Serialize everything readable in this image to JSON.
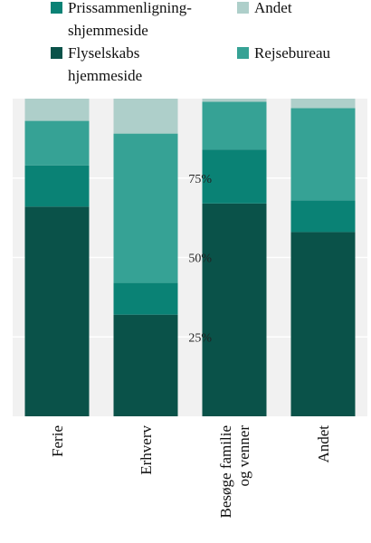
{
  "chart_data": {
    "type": "bar",
    "stacked": true,
    "normalized": true,
    "orientation": "vertical",
    "categories": [
      "Ferie",
      "Erhverv",
      "Besøge familie og venner",
      "Andet"
    ],
    "category_lines": [
      [
        "Ferie"
      ],
      [
        "Erhverv"
      ],
      [
        "Besøge familie",
        "og venner"
      ],
      [
        "Andet"
      ]
    ],
    "series": [
      {
        "name": "Flyselskabs hjemmeside",
        "legend_lines": [
          "Flyselskabs",
          "hjemmeside"
        ],
        "color": "#0a5249",
        "values": [
          66,
          32,
          67,
          58
        ]
      },
      {
        "name": "Prissammenligning-shjemmeside",
        "legend_lines": [
          "Prissammenligning-",
          "shjemmeside"
        ],
        "color": "#0a8275",
        "values": [
          13,
          10,
          17,
          10
        ]
      },
      {
        "name": "Rejsebureau",
        "legend_lines": [
          "Rejsebureau"
        ],
        "color": "#36a295",
        "values": [
          14,
          47,
          15,
          29
        ]
      },
      {
        "name": "Andet",
        "legend_lines": [
          "Andet"
        ],
        "color": "#aecfca",
        "values": [
          7,
          11,
          1,
          3
        ]
      }
    ],
    "yticks": [
      "25%",
      "50%",
      "75%"
    ],
    "ytick_values": [
      25,
      50,
      75
    ],
    "ylim": [
      0,
      100
    ],
    "grid": true,
    "background": "#f1f1f1",
    "legend_position": "top",
    "legend_order": [
      "Prissammenligning-shjemmeside",
      "Andet",
      "Flyselskabs hjemmeside",
      "Rejsebureau"
    ]
  }
}
